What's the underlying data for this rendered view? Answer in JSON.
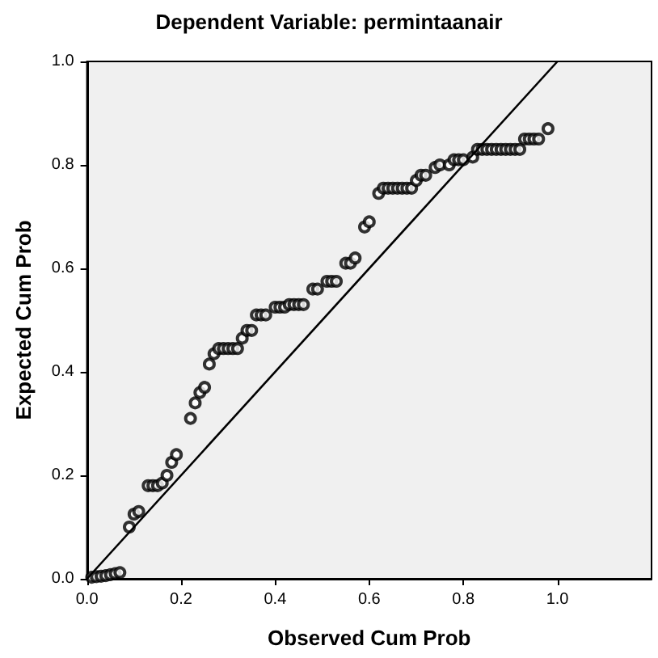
{
  "chart_data": {
    "type": "scatter",
    "title": "Dependent Variable: permintaanair",
    "xlabel": "Observed Cum Prob",
    "ylabel": "Expected Cum Prob",
    "xlim": [
      0,
      1.2
    ],
    "ylim": [
      0,
      1.0
    ],
    "xticks": [
      {
        "value": 0,
        "label": "0.0"
      },
      {
        "value": 0.2,
        "label": "0.2"
      },
      {
        "value": 0.4,
        "label": "0.4"
      },
      {
        "value": 0.6,
        "label": "0.6"
      },
      {
        "value": 0.8,
        "label": "0.8"
      },
      {
        "value": 1.0,
        "label": "1.0"
      }
    ],
    "yticks": [
      {
        "value": 0,
        "label": "0.0"
      },
      {
        "value": 0.2,
        "label": "0.2"
      },
      {
        "value": 0.4,
        "label": "0.4"
      },
      {
        "value": 0.6,
        "label": "0.6"
      },
      {
        "value": 0.8,
        "label": "0.8"
      },
      {
        "value": 1.0,
        "label": "1.0"
      }
    ],
    "grid": false,
    "series": [
      {
        "marker": "circle",
        "color": "#000000",
        "x": [
          0.01,
          0.02,
          0.03,
          0.04,
          0.05,
          0.06,
          0.07,
          0.09,
          0.1,
          0.11,
          0.13,
          0.14,
          0.15,
          0.16,
          0.17,
          0.18,
          0.19,
          0.22,
          0.23,
          0.24,
          0.25,
          0.26,
          0.27,
          0.28,
          0.29,
          0.3,
          0.31,
          0.32,
          0.33,
          0.34,
          0.35,
          0.36,
          0.37,
          0.38,
          0.4,
          0.41,
          0.42,
          0.43,
          0.44,
          0.45,
          0.46,
          0.48,
          0.49,
          0.51,
          0.52,
          0.53,
          0.55,
          0.56,
          0.57,
          0.59,
          0.6,
          0.62,
          0.63,
          0.64,
          0.65,
          0.66,
          0.67,
          0.68,
          0.69,
          0.7,
          0.71,
          0.72,
          0.74,
          0.75,
          0.77,
          0.78,
          0.79,
          0.8,
          0.82,
          0.83,
          0.84,
          0.85,
          0.86,
          0.87,
          0.88,
          0.89,
          0.9,
          0.91,
          0.92,
          0.93,
          0.94,
          0.95,
          0.96,
          0.98
        ],
        "values": [
          0.003,
          0.004,
          0.005,
          0.006,
          0.008,
          0.01,
          0.012,
          0.1,
          0.125,
          0.13,
          0.18,
          0.18,
          0.18,
          0.185,
          0.2,
          0.225,
          0.24,
          0.31,
          0.34,
          0.36,
          0.37,
          0.415,
          0.435,
          0.445,
          0.445,
          0.445,
          0.445,
          0.445,
          0.465,
          0.48,
          0.48,
          0.51,
          0.51,
          0.51,
          0.525,
          0.525,
          0.525,
          0.53,
          0.53,
          0.53,
          0.53,
          0.56,
          0.56,
          0.575,
          0.575,
          0.575,
          0.61,
          0.61,
          0.62,
          0.68,
          0.69,
          0.745,
          0.755,
          0.755,
          0.755,
          0.755,
          0.755,
          0.755,
          0.755,
          0.77,
          0.78,
          0.78,
          0.795,
          0.8,
          0.8,
          0.81,
          0.81,
          0.81,
          0.815,
          0.83,
          0.83,
          0.83,
          0.83,
          0.83,
          0.83,
          0.83,
          0.83,
          0.83,
          0.83,
          0.85,
          0.85,
          0.85,
          0.85,
          0.87
        ]
      },
      {
        "type": "line",
        "marker": "none",
        "line_style": "solid",
        "color": "#000000",
        "x": [
          0,
          1
        ],
        "values": [
          0,
          1
        ]
      }
    ]
  }
}
